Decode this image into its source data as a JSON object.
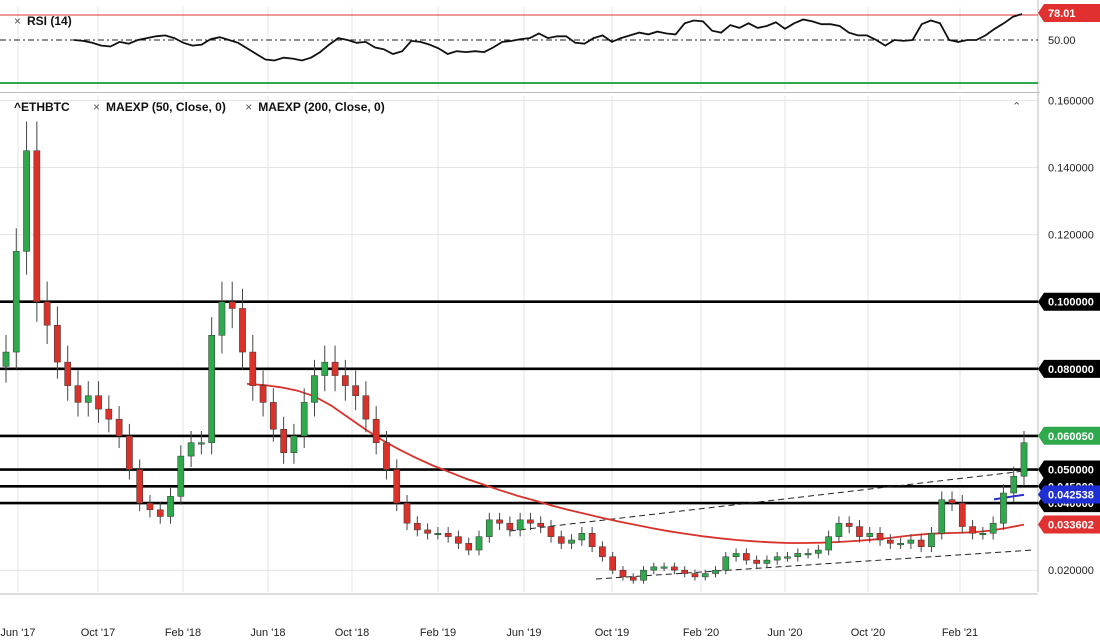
{
  "rsi_panel": {
    "title": "RSI (14)",
    "levels": [
      {
        "value": 70,
        "color": "#e03030",
        "style": "solid"
      },
      {
        "value": 50,
        "color": "#222222",
        "style": "dashdot"
      },
      {
        "value": 30,
        "color": "#2eaa4c",
        "style": "solid"
      }
    ],
    "axis_labels": [
      {
        "value": 50,
        "text": "50.00"
      }
    ],
    "current_badge": {
      "value": 78.01,
      "text": "78.01",
      "color": "#e03030"
    }
  },
  "main_panel": {
    "symbol": "^ETHBTC",
    "indicators": [
      "MAEXP (50, Close, 0)",
      "MAEXP (200, Close, 0)"
    ],
    "y_ticks": [
      {
        "value": 0.16,
        "text": "0.160000"
      },
      {
        "value": 0.14,
        "text": "0.140000"
      },
      {
        "value": 0.12,
        "text": "0.120000"
      },
      {
        "value": 0.02,
        "text": "0.020000"
      }
    ],
    "x_ticks": [
      "Jun '17",
      "Oct '17",
      "Feb '18",
      "Jun '18",
      "Oct '18",
      "Feb '19",
      "Jun '19",
      "Oct '19",
      "Feb '20",
      "Jun '20",
      "Oct '20",
      "Feb '21"
    ],
    "badges": [
      {
        "value": 0.1,
        "text": "0.100000",
        "bg": "#000000"
      },
      {
        "value": 0.08,
        "text": "0.080000",
        "bg": "#000000"
      },
      {
        "value": 0.06005,
        "text": "0.060050",
        "bg": "#2eaa4c"
      },
      {
        "value": 0.05,
        "text": "0.050000",
        "bg": "#000000"
      },
      {
        "value": 0.04,
        "text": "0.040000",
        "bg": "#000000"
      },
      {
        "value": 0.045,
        "text": "0.045000",
        "bg": "#000000"
      },
      {
        "value": 0.042538,
        "text": "0.042538",
        "bg": "#1f2fd6"
      },
      {
        "value": 0.033602,
        "text": "0.033602",
        "bg": "#e03030"
      }
    ]
  },
  "chart_data": {
    "type": "candlestick",
    "title": "^ETHBTC",
    "y_range": [
      0.0135,
      0.1625
    ],
    "x_ticks": [
      "Jun '17",
      "Oct '17",
      "Feb '18",
      "Jun '18",
      "Oct '18",
      "Feb '19",
      "Jun '19",
      "Oct '19",
      "Feb '20",
      "Jun '20",
      "Oct '20",
      "Feb '21"
    ],
    "horizontal_levels": [
      0.1,
      0.08,
      0.06,
      0.05,
      0.045,
      0.04
    ],
    "close_series": [
      0.085,
      0.115,
      0.145,
      0.1,
      0.093,
      0.082,
      0.075,
      0.07,
      0.072,
      0.068,
      0.065,
      0.06,
      0.05,
      0.04,
      0.038,
      0.036,
      0.042,
      0.054,
      0.058,
      0.058,
      0.09,
      0.1,
      0.098,
      0.085,
      0.075,
      0.07,
      0.062,
      0.055,
      0.06,
      0.07,
      0.078,
      0.082,
      0.078,
      0.075,
      0.072,
      0.065,
      0.058,
      0.05,
      0.04,
      0.034,
      0.032,
      0.031,
      0.031,
      0.03,
      0.028,
      0.026,
      0.03,
      0.035,
      0.034,
      0.032,
      0.035,
      0.034,
      0.033,
      0.03,
      0.028,
      0.029,
      0.031,
      0.027,
      0.024,
      0.02,
      0.018,
      0.017,
      0.02,
      0.021,
      0.021,
      0.02,
      0.019,
      0.018,
      0.019,
      0.02,
      0.024,
      0.025,
      0.023,
      0.022,
      0.023,
      0.024,
      0.024,
      0.025,
      0.025,
      0.026,
      0.03,
      0.034,
      0.033,
      0.03,
      0.031,
      0.029,
      0.028,
      0.028,
      0.029,
      0.027,
      0.031,
      0.041,
      0.04,
      0.033,
      0.031,
      0.031,
      0.034,
      0.043,
      0.048,
      0.058
    ],
    "series": [
      {
        "name": "MAEXP (50, Close, 0)",
        "color": "#2a2fcf",
        "values": [
          0.0411,
          0.0425
        ]
      },
      {
        "name": "MAEXP (200, Close, 0)",
        "color": "#d9322b",
        "values": [
          0.0755,
          0.0752,
          0.0745,
          0.0735,
          0.0718,
          0.069,
          0.0655,
          0.062,
          0.0588,
          0.056,
          0.0535,
          0.0512,
          0.0492,
          0.0472,
          0.0455,
          0.0438,
          0.0422,
          0.0408,
          0.0393,
          0.038,
          0.0368,
          0.0356,
          0.0345,
          0.0335,
          0.0325,
          0.0316,
          0.0308,
          0.0301,
          0.0295,
          0.029,
          0.0286,
          0.0283,
          0.0281,
          0.0281,
          0.0282,
          0.0284,
          0.0287,
          0.0291,
          0.0296,
          0.0302,
          0.0307,
          0.031,
          0.0311,
          0.0313,
          0.0318,
          0.0326,
          0.0336
        ]
      }
    ],
    "rsi": {
      "name": "RSI (14)",
      "current": 78.01,
      "values": [
        50,
        49,
        47,
        44,
        43,
        48,
        46,
        50,
        52,
        54,
        55,
        52,
        47,
        44,
        45,
        51,
        53,
        50,
        47,
        41,
        35,
        29,
        28,
        31,
        30,
        28,
        31,
        37,
        45,
        52,
        50,
        47,
        48,
        42,
        40,
        35,
        38,
        49,
        48,
        45,
        41,
        35,
        38,
        37,
        38,
        37,
        42,
        48,
        49,
        51,
        52,
        57,
        52,
        54,
        54,
        47,
        46,
        52,
        55,
        48,
        52,
        55,
        58,
        56,
        59,
        57,
        56,
        68,
        71,
        70,
        60,
        58,
        66,
        63,
        68,
        63,
        65,
        69,
        62,
        68,
        72,
        70,
        67,
        67,
        65,
        58,
        55,
        55,
        50,
        44,
        50,
        49,
        50,
        67,
        71,
        68,
        50,
        48,
        50,
        50,
        55,
        62,
        68,
        75,
        78
      ]
    }
  }
}
